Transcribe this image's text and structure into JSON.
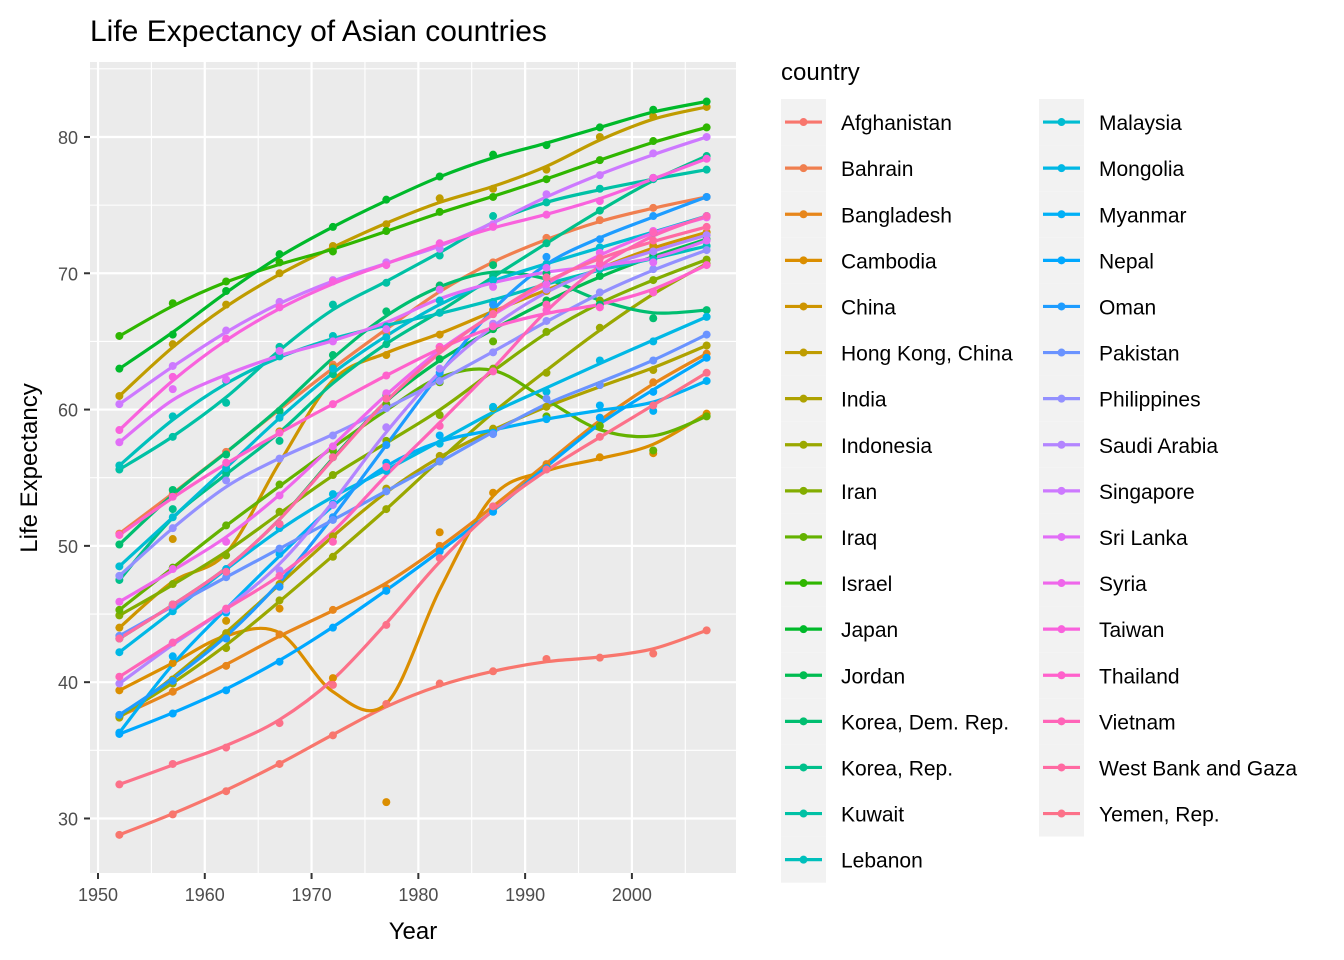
{
  "chart_data": {
    "type": "line",
    "title": "Life Expectancy of Asian countries",
    "xlabel": "Year",
    "ylabel": "Life Expectancy",
    "legend_title": "country",
    "legend_position": "right",
    "grid": true,
    "xlim": [
      1949.25,
      2009.75
    ],
    "ylim": [
      26.0,
      85.5
    ],
    "x_ticks": [
      1950,
      1960,
      1970,
      1980,
      1990,
      2000
    ],
    "y_ticks": [
      30,
      40,
      50,
      60,
      70,
      80
    ],
    "x": [
      1952,
      1957,
      1962,
      1967,
      1972,
      1977,
      1982,
      1987,
      1992,
      1997,
      2002,
      2007
    ],
    "series": [
      {
        "name": "Afghanistan",
        "color": "#F8766D",
        "values": [
          28.8,
          30.3,
          32.0,
          34.0,
          36.1,
          38.4,
          39.9,
          40.8,
          41.7,
          41.8,
          42.1,
          43.8
        ]
      },
      {
        "name": "Bahrain",
        "color": "#F07F4F",
        "values": [
          50.9,
          53.8,
          56.9,
          59.9,
          63.3,
          65.6,
          69.1,
          70.8,
          72.6,
          73.9,
          74.8,
          75.6
        ]
      },
      {
        "name": "Bangladesh",
        "color": "#E7861B",
        "values": [
          37.5,
          39.3,
          41.2,
          43.5,
          45.3,
          46.9,
          50.0,
          52.8,
          56.0,
          59.4,
          62.0,
          64.1
        ]
      },
      {
        "name": "Cambodia",
        "color": "#DB8E00",
        "values": [
          39.4,
          41.4,
          43.4,
          45.4,
          40.3,
          31.2,
          51.0,
          53.9,
          55.8,
          56.5,
          56.8,
          59.7
        ]
      },
      {
        "name": "China",
        "color": "#CE9500",
        "values": [
          44.0,
          50.5,
          44.5,
          58.4,
          63.1,
          64.0,
          65.5,
          67.3,
          68.7,
          70.4,
          72.0,
          73.0
        ]
      },
      {
        "name": "Hong Kong, China",
        "color": "#BF9C00",
        "values": [
          61.0,
          64.8,
          67.7,
          70.0,
          72.0,
          73.6,
          75.5,
          76.2,
          77.6,
          80.0,
          81.5,
          82.2
        ]
      },
      {
        "name": "India",
        "color": "#AEA200",
        "values": [
          37.4,
          40.2,
          43.6,
          47.2,
          50.7,
          54.2,
          56.6,
          58.6,
          60.2,
          61.8,
          62.9,
          64.7
        ]
      },
      {
        "name": "Indonesia",
        "color": "#9AA800",
        "values": [
          37.5,
          39.9,
          42.5,
          46.0,
          49.2,
          52.7,
          56.2,
          60.1,
          62.7,
          66.0,
          68.6,
          70.7
        ]
      },
      {
        "name": "Iran",
        "color": "#83AD00",
        "values": [
          44.9,
          47.2,
          49.3,
          52.5,
          55.2,
          57.7,
          59.6,
          63.0,
          65.7,
          68.0,
          69.5,
          71.0
        ]
      },
      {
        "name": "Iraq",
        "color": "#64B200",
        "values": [
          45.3,
          48.4,
          51.5,
          54.5,
          57.0,
          60.4,
          62.0,
          65.0,
          59.5,
          58.8,
          57.0,
          59.5
        ]
      },
      {
        "name": "Israel",
        "color": "#2FB600",
        "values": [
          65.4,
          67.8,
          69.4,
          70.8,
          71.6,
          73.1,
          74.5,
          75.6,
          76.9,
          78.3,
          79.7,
          80.7
        ]
      },
      {
        "name": "Japan",
        "color": "#00B92A",
        "values": [
          63.0,
          65.5,
          68.7,
          71.4,
          73.4,
          75.4,
          77.1,
          78.7,
          79.4,
          80.7,
          82.0,
          82.6
        ]
      },
      {
        "name": "Jordan",
        "color": "#00BC51",
        "values": [
          43.2,
          45.7,
          48.1,
          51.6,
          56.5,
          61.1,
          63.7,
          65.9,
          68.0,
          69.8,
          71.3,
          72.5
        ]
      },
      {
        "name": "Korea, Dem. Rep.",
        "color": "#00BE70",
        "values": [
          50.1,
          54.1,
          56.7,
          59.9,
          64.0,
          67.2,
          69.1,
          70.6,
          70.0,
          67.7,
          66.7,
          67.3
        ]
      },
      {
        "name": "Korea, Rep.",
        "color": "#00C08B",
        "values": [
          47.5,
          52.7,
          55.3,
          57.7,
          62.6,
          64.8,
          67.1,
          69.8,
          72.2,
          74.6,
          77.0,
          78.6
        ]
      },
      {
        "name": "Kuwait",
        "color": "#00C1A5",
        "values": [
          55.6,
          58.0,
          60.5,
          64.6,
          67.7,
          69.3,
          71.3,
          74.2,
          75.2,
          76.2,
          76.9,
          77.6
        ]
      },
      {
        "name": "Lebanon",
        "color": "#00C0BC",
        "values": [
          55.9,
          59.5,
          62.1,
          63.9,
          65.4,
          66.1,
          67.1,
          67.9,
          69.3,
          70.3,
          71.0,
          72.0
        ]
      },
      {
        "name": "Malaysia",
        "color": "#00BDD2",
        "values": [
          48.5,
          52.1,
          55.7,
          59.4,
          63.0,
          65.3,
          68.0,
          69.5,
          70.7,
          71.9,
          73.0,
          74.2
        ]
      },
      {
        "name": "Mongolia",
        "color": "#00B8E5",
        "values": [
          42.2,
          45.2,
          48.3,
          51.3,
          53.8,
          55.5,
          57.5,
          60.2,
          61.3,
          63.6,
          65.0,
          66.8
        ]
      },
      {
        "name": "Myanmar",
        "color": "#00B0F6",
        "values": [
          36.3,
          41.9,
          45.1,
          49.4,
          53.1,
          56.1,
          58.1,
          58.3,
          59.3,
          60.3,
          59.9,
          62.1
        ]
      },
      {
        "name": "Nepal",
        "color": "#00A8FF",
        "values": [
          36.2,
          37.7,
          39.4,
          41.5,
          44.0,
          46.7,
          49.6,
          52.5,
          55.7,
          59.4,
          61.3,
          63.8
        ]
      },
      {
        "name": "Oman",
        "color": "#1E9CFF",
        "values": [
          37.6,
          40.1,
          43.2,
          47.0,
          52.1,
          57.4,
          62.7,
          67.7,
          71.2,
          72.5,
          74.2,
          75.6
        ]
      },
      {
        "name": "Pakistan",
        "color": "#6A93FF",
        "values": [
          43.4,
          45.6,
          47.7,
          49.8,
          51.9,
          54.0,
          56.2,
          58.2,
          60.8,
          61.8,
          63.6,
          65.5
        ]
      },
      {
        "name": "Philippines",
        "color": "#9390FF",
        "values": [
          47.8,
          51.3,
          54.8,
          56.4,
          58.1,
          60.1,
          62.1,
          64.2,
          66.5,
          68.6,
          70.3,
          71.7
        ]
      },
      {
        "name": "Saudi Arabia",
        "color": "#B385FF",
        "values": [
          39.9,
          42.9,
          45.3,
          48.2,
          53.0,
          58.7,
          63.0,
          66.3,
          68.8,
          70.5,
          71.6,
          72.8
        ]
      },
      {
        "name": "Singapore",
        "color": "#CD79FF",
        "values": [
          60.4,
          63.2,
          65.8,
          67.9,
          69.5,
          70.8,
          71.8,
          73.6,
          75.8,
          77.2,
          78.8,
          80.0
        ]
      },
      {
        "name": "Sri Lanka",
        "color": "#E16EF7",
        "values": [
          57.6,
          61.5,
          62.2,
          64.3,
          65.0,
          65.9,
          68.8,
          69.0,
          70.4,
          70.5,
          70.8,
          72.4
        ]
      },
      {
        "name": "Syria",
        "color": "#EF67EB",
        "values": [
          45.9,
          48.3,
          50.3,
          53.7,
          57.3,
          61.2,
          64.6,
          67.0,
          69.2,
          71.5,
          73.1,
          74.1
        ]
      },
      {
        "name": "Taiwan",
        "color": "#F962DD",
        "values": [
          58.5,
          62.4,
          65.2,
          67.5,
          69.4,
          70.6,
          72.2,
          73.4,
          74.3,
          75.3,
          77.0,
          78.4
        ]
      },
      {
        "name": "Thailand",
        "color": "#FF61CC",
        "values": [
          50.8,
          53.6,
          56.1,
          58.3,
          60.4,
          62.5,
          64.6,
          66.1,
          67.3,
          67.5,
          68.6,
          70.6
        ]
      },
      {
        "name": "Vietnam",
        "color": "#FF64B8",
        "values": [
          40.4,
          42.9,
          45.4,
          47.8,
          50.3,
          55.8,
          58.8,
          62.8,
          67.7,
          70.7,
          73.0,
          74.2
        ]
      },
      {
        "name": "West Bank and Gaza",
        "color": "#FF6AA2",
        "values": [
          43.2,
          45.7,
          48.1,
          51.6,
          56.5,
          60.8,
          64.4,
          67.0,
          69.7,
          71.1,
          72.4,
          73.4
        ]
      },
      {
        "name": "Yemen, Rep.",
        "color": "#FC7189",
        "values": [
          32.5,
          34.0,
          35.2,
          37.0,
          39.8,
          44.2,
          49.1,
          52.9,
          55.6,
          58.0,
          60.3,
          62.7
        ]
      }
    ]
  }
}
